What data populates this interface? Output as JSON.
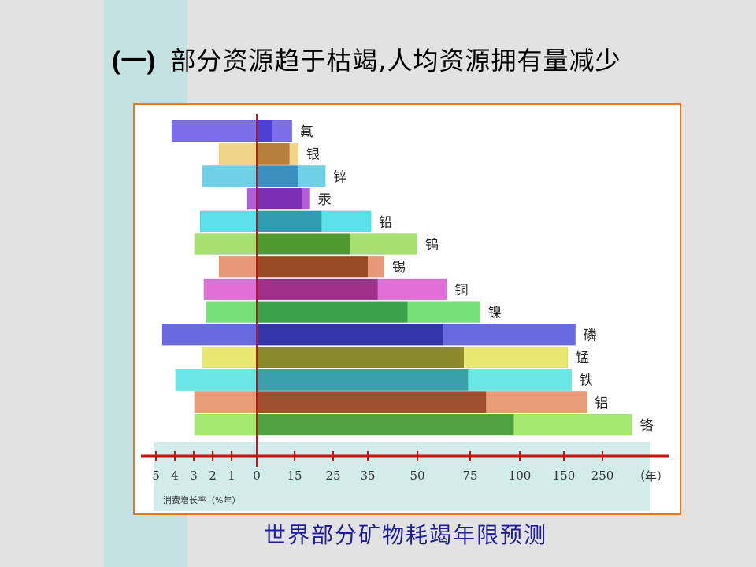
{
  "slide": {
    "title_number": "(一)",
    "title_text": "部分资源趋于枯竭,人均资源拥有量减少"
  },
  "chart_data": {
    "type": "bar",
    "caption": "世界部分矿物耗竭年限预测",
    "left_axis_label": "消费增长率（%年）",
    "right_axis_unit": "（年）",
    "left_ticks": [
      5,
      4,
      3,
      2,
      1,
      0
    ],
    "right_ticks": [
      0,
      15,
      25,
      35,
      50,
      75,
      100,
      150,
      250
    ],
    "minerals": [
      {
        "name": "氟",
        "growth_rate": 4.5,
        "years_short": 6,
        "years_long": 14,
        "dark": "#4b3fd4",
        "light": "#7b6ee8"
      },
      {
        "name": "银",
        "growth_rate": 2.0,
        "years_short": 13,
        "years_long": 16,
        "dark": "#b5803c",
        "light": "#f0d48a"
      },
      {
        "name": "锌",
        "growth_rate": 2.9,
        "years_short": 16,
        "years_long": 23,
        "dark": "#3a8fbf",
        "light": "#6fd0e6"
      },
      {
        "name": "汞",
        "growth_rate": 0.5,
        "years_short": 17,
        "years_long": 19,
        "dark": "#7a2fb0",
        "light": "#b05fd8"
      },
      {
        "name": "铅",
        "growth_rate": 3.0,
        "years_short": 22,
        "years_long": 36,
        "dark": "#2f9bb0",
        "light": "#5ae0e8"
      },
      {
        "name": "钨",
        "growth_rate": 3.3,
        "years_short": 30,
        "years_long": 50,
        "dark": "#4e9a2e",
        "light": "#a8e070"
      },
      {
        "name": "锡",
        "growth_rate": 2.0,
        "years_short": 35,
        "years_long": 40,
        "dark": "#9a4a24",
        "light": "#e89878"
      },
      {
        "name": "铜",
        "growth_rate": 2.8,
        "years_short": 38,
        "years_long": 64,
        "dark": "#a0308a",
        "light": "#e070d8"
      },
      {
        "name": "镍",
        "growth_rate": 2.7,
        "years_short": 47,
        "years_long": 80,
        "dark": "#3aa04a",
        "light": "#78e078"
      },
      {
        "name": "磷",
        "growth_rate": 5.0,
        "years_short": 62,
        "years_long": 180,
        "dark": "#3436a8",
        "light": "#6a6ae0"
      },
      {
        "name": "锰",
        "growth_rate": 2.9,
        "years_short": 72,
        "years_long": 160,
        "dark": "#8a8a2a",
        "light": "#e8e870"
      },
      {
        "name": "铁",
        "growth_rate": 4.3,
        "years_short": 74,
        "years_long": 170,
        "dark": "#3aa0ac",
        "light": "#6ae8e8"
      },
      {
        "name": "铝",
        "growth_rate": 3.3,
        "years_short": 83,
        "years_long": 210,
        "dark": "#a04e30",
        "light": "#e89c78"
      },
      {
        "name": "铬",
        "growth_rate": 3.3,
        "years_short": 97,
        "years_long": 420,
        "dark": "#4ea040",
        "light": "#a4e870"
      }
    ]
  },
  "colors": {
    "frame_border": "#e8781e",
    "axis": "#cc1111",
    "caption": "#1e1e9a",
    "left_strip": "#c5e2e2",
    "background": "#e2e2e2"
  }
}
